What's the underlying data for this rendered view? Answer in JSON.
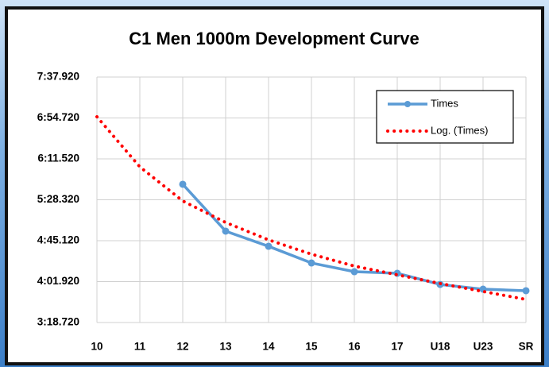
{
  "chart_data": {
    "type": "line",
    "title": "C1 Men 1000m Development Curve",
    "categories": [
      "10",
      "11",
      "12",
      "13",
      "14",
      "15",
      "16",
      "17",
      "U18",
      "U23",
      "SR"
    ],
    "series": [
      {
        "name": "Times",
        "color": "#5b9bd5",
        "style": "solid",
        "markers": true,
        "values": [
          null,
          null,
          344.7,
          295.2,
          279.2,
          261.6,
          252.4,
          250.7,
          238.9,
          233.9,
          232.3
        ]
      },
      {
        "name": "Log. (Times)",
        "color": "#ff0000",
        "style": "dotted",
        "markers": false,
        "values": [
          416.0,
          363.1,
          327.1,
          304.4,
          286.0,
          270.9,
          258.3,
          249.1,
          239.9,
          231.5,
          223.1
        ]
      }
    ],
    "ylim": [
      198.72,
      457.92
    ],
    "yticks": [
      {
        "value": 198.72,
        "label": "3:18.720"
      },
      {
        "value": 241.92,
        "label": "4:01.920"
      },
      {
        "value": 285.12,
        "label": "4:45.120"
      },
      {
        "value": 328.32,
        "label": "5:28.320"
      },
      {
        "value": 371.52,
        "label": "6:11.520"
      },
      {
        "value": 414.72,
        "label": "6:54.720"
      },
      {
        "value": 457.92,
        "label": "7:37.920"
      }
    ],
    "grid": true,
    "legend": "upper right"
  }
}
